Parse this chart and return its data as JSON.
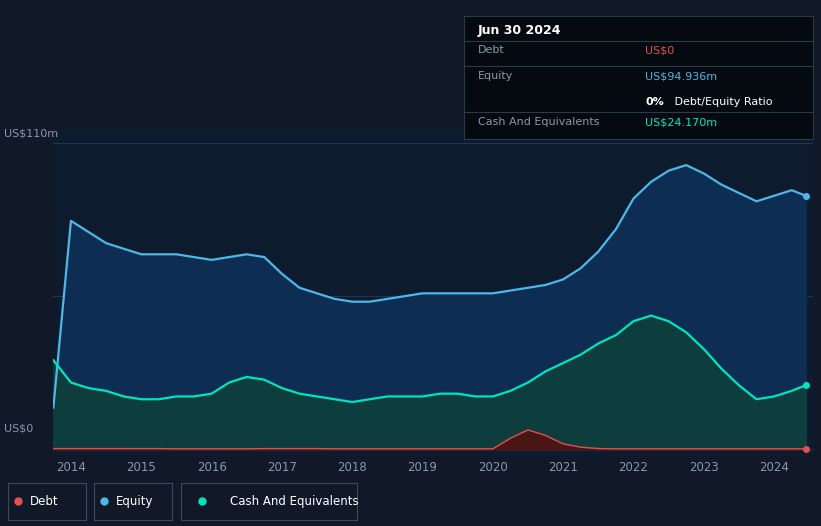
{
  "background_color": "#111827",
  "chart_bg": "#0d1b2e",
  "grid_color": "#1e3a5f",
  "y_label_top": "US$110m",
  "y_label_bottom": "US$0",
  "x_ticks": [
    "2014",
    "2015",
    "2016",
    "2017",
    "2018",
    "2019",
    "2020",
    "2021",
    "2022",
    "2023",
    "2024"
  ],
  "tooltip_date": "Jun 30 2024",
  "tooltip_debt_label": "Debt",
  "tooltip_debt_value": "US$0",
  "tooltip_equity_label": "Equity",
  "tooltip_equity_value": "US$94.936m",
  "tooltip_ratio_bold": "0%",
  "tooltip_ratio_rest": " Debt/Equity Ratio",
  "tooltip_cash_label": "Cash And Equivalents",
  "tooltip_cash_value": "US$24.170m",
  "debt_color": "#e05252",
  "equity_color": "#4db8e8",
  "cash_color": "#00e5c0",
  "equity_fill": "#0d2e52",
  "cash_fill": "#0d3d3d",
  "years": [
    2013.75,
    2014.0,
    2014.25,
    2014.5,
    2014.75,
    2015.0,
    2015.25,
    2015.5,
    2015.75,
    2016.0,
    2016.25,
    2016.5,
    2016.75,
    2017.0,
    2017.25,
    2017.5,
    2017.75,
    2018.0,
    2018.25,
    2018.5,
    2018.75,
    2019.0,
    2019.25,
    2019.5,
    2019.75,
    2020.0,
    2020.25,
    2020.5,
    2020.75,
    2021.0,
    2021.25,
    2021.5,
    2021.75,
    2022.0,
    2022.25,
    2022.5,
    2022.75,
    2023.0,
    2023.25,
    2023.5,
    2023.75,
    2024.0,
    2024.25,
    2024.45
  ],
  "equity": [
    15,
    82,
    78,
    74,
    72,
    70,
    70,
    70,
    69,
    68,
    69,
    70,
    69,
    63,
    58,
    56,
    54,
    53,
    53,
    54,
    55,
    56,
    56,
    56,
    56,
    56,
    57,
    58,
    59,
    61,
    65,
    71,
    79,
    90,
    96,
    100,
    102,
    99,
    95,
    92,
    89,
    91,
    93,
    91
  ],
  "cash": [
    32,
    24,
    22,
    21,
    19,
    18,
    18,
    19,
    19,
    20,
    24,
    26,
    25,
    22,
    20,
    19,
    18,
    17,
    18,
    19,
    19,
    19,
    20,
    20,
    19,
    19,
    21,
    24,
    28,
    31,
    34,
    38,
    41,
    46,
    48,
    46,
    42,
    36,
    29,
    23,
    18,
    19,
    21,
    23
  ],
  "debt": [
    0.3,
    0.3,
    0.3,
    0.3,
    0.3,
    0.3,
    0.3,
    0.2,
    0.2,
    0.2,
    0.2,
    0.2,
    0.3,
    0.3,
    0.3,
    0.3,
    0.2,
    0.2,
    0.2,
    0.2,
    0.2,
    0.2,
    0.2,
    0.2,
    0.2,
    0.2,
    4.0,
    7.0,
    5.0,
    2.0,
    0.8,
    0.3,
    0.2,
    0.2,
    0.2,
    0.2,
    0.2,
    0.2,
    0.2,
    0.2,
    0.2,
    0.2,
    0.2,
    0.2
  ],
  "xmin": 2013.75,
  "xmax": 2024.55,
  "ymin": -2,
  "ymax": 115
}
